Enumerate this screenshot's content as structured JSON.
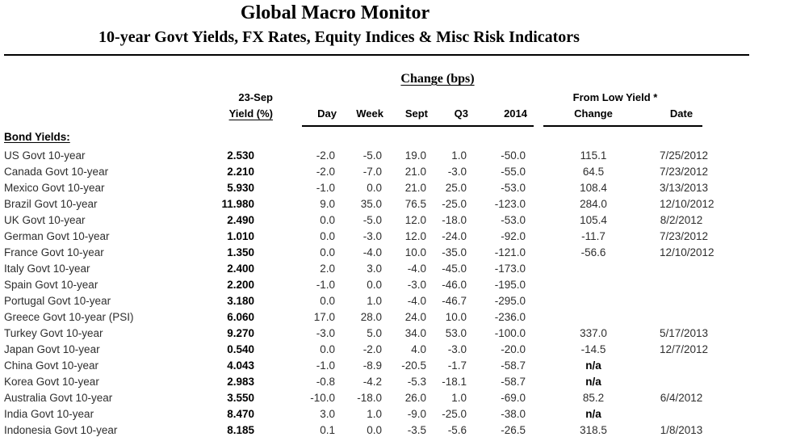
{
  "title": "Global Macro Monitor",
  "subtitle": "10-year Govt Yields, FX Rates, Equity Indices & Misc Risk Indicators",
  "table": {
    "change_group_header": "Change (bps)",
    "asof_header": "23-Sep",
    "yield_header": "Yield (%)",
    "from_low_header": "From Low Yield  *",
    "col_headers": {
      "day": "Day",
      "week": "Week",
      "sept": "Sept",
      "q3": "Q3",
      "y2014": "2014",
      "low_change": "Change",
      "low_date": "Date"
    },
    "section_label": "Bond Yields:",
    "row_keys": [
      "name",
      "yield",
      "day",
      "week",
      "sept",
      "q3",
      "y2014",
      "low_change",
      "low_date"
    ],
    "rows": [
      {
        "name": "US Govt 10-year",
        "yield": "2.530",
        "day": "-2.0",
        "week": "-5.0",
        "sept": "19.0",
        "q3": "1.0",
        "y2014": "-50.0",
        "low_change": "115.1",
        "low_date": "7/25/2012"
      },
      {
        "name": "Canada Govt 10-year",
        "yield": "2.210",
        "day": "-2.0",
        "week": "-7.0",
        "sept": "21.0",
        "q3": "-3.0",
        "y2014": "-55.0",
        "low_change": "64.5",
        "low_date": "7/23/2012"
      },
      {
        "name": "Mexico Govt 10-year",
        "yield": "5.930",
        "day": "-1.0",
        "week": "0.0",
        "sept": "21.0",
        "q3": "25.0",
        "y2014": "-53.0",
        "low_change": "108.4",
        "low_date": "3/13/2013"
      },
      {
        "name": "Brazil Govt 10-year",
        "yield": "11.980",
        "day": "9.0",
        "week": "35.0",
        "sept": "76.5",
        "q3": "-25.0",
        "y2014": "-123.0",
        "low_change": "284.0",
        "low_date": "12/10/2012"
      },
      {
        "name": "UK Govt 10-year",
        "yield": "2.490",
        "day": "0.0",
        "week": "-5.0",
        "sept": "12.0",
        "q3": "-18.0",
        "y2014": "-53.0",
        "low_change": "105.4",
        "low_date": "8/2/2012"
      },
      {
        "name": "German Govt 10-year",
        "yield": "1.010",
        "day": "0.0",
        "week": "-3.0",
        "sept": "12.0",
        "q3": "-24.0",
        "y2014": "-92.0",
        "low_change": "-11.7",
        "low_date": "7/23/2012"
      },
      {
        "name": "France Govt 10-year",
        "yield": "1.350",
        "day": "0.0",
        "week": "-4.0",
        "sept": "10.0",
        "q3": "-35.0",
        "y2014": "-121.0",
        "low_change": "-56.6",
        "low_date": "12/10/2012"
      },
      {
        "name": "Italy Govt 10-year",
        "yield": "2.400",
        "day": "2.0",
        "week": "3.0",
        "sept": "-4.0",
        "q3": "-45.0",
        "y2014": "-173.0",
        "low_change": "",
        "low_date": ""
      },
      {
        "name": "Spain Govt 10-year",
        "yield": "2.200",
        "day": "-1.0",
        "week": "0.0",
        "sept": "-3.0",
        "q3": "-46.0",
        "y2014": "-195.0",
        "low_change": "",
        "low_date": ""
      },
      {
        "name": "Portugal Govt 10-year",
        "yield": "3.180",
        "day": "0.0",
        "week": "1.0",
        "sept": "-4.0",
        "q3": "-46.7",
        "y2014": "-295.0",
        "low_change": "",
        "low_date": ""
      },
      {
        "name": "Greece Govt 10-year (PSI)",
        "yield": "6.060",
        "day": "17.0",
        "week": "28.0",
        "sept": "24.0",
        "q3": "10.0",
        "y2014": "-236.0",
        "low_change": "",
        "low_date": ""
      },
      {
        "name": "Turkey Govt 10-year",
        "yield": "9.270",
        "day": "-3.0",
        "week": "5.0",
        "sept": "34.0",
        "q3": "53.0",
        "y2014": "-100.0",
        "low_change": "337.0",
        "low_date": "5/17/2013"
      },
      {
        "name": "Japan Govt 10-year",
        "yield": "0.540",
        "day": "0.0",
        "week": "-2.0",
        "sept": "4.0",
        "q3": "-3.0",
        "y2014": "-20.0",
        "low_change": "-14.5",
        "low_date": "12/7/2012"
      },
      {
        "name": "China Govt 10-year",
        "yield": "4.043",
        "day": "-1.0",
        "week": "-8.9",
        "sept": "-20.5",
        "q3": "-1.7",
        "y2014": "-58.7",
        "low_change": "n/a",
        "low_date": ""
      },
      {
        "name": "Korea Govt 10-year",
        "yield": "2.983",
        "day": "-0.8",
        "week": "-4.2",
        "sept": "-5.3",
        "q3": "-18.1",
        "y2014": "-58.7",
        "low_change": "n/a",
        "low_date": ""
      },
      {
        "name": "Australia Govt 10-year",
        "yield": "3.550",
        "day": "-10.0",
        "week": "-18.0",
        "sept": "26.0",
        "q3": "1.0",
        "y2014": "-69.0",
        "low_change": "85.2",
        "low_date": "6/4/2012"
      },
      {
        "name": "India Govt 10-year",
        "yield": "8.470",
        "day": "3.0",
        "week": "1.0",
        "sept": "-9.0",
        "q3": "-25.0",
        "y2014": "-38.0",
        "low_change": "n/a",
        "low_date": ""
      },
      {
        "name": "Indonesia Govt 10-year",
        "yield": "8.185",
        "day": "0.1",
        "week": "0.0",
        "sept": "-3.5",
        "q3": "-5.6",
        "y2014": "-26.5",
        "low_change": "318.5",
        "low_date": "1/8/2013"
      }
    ]
  }
}
